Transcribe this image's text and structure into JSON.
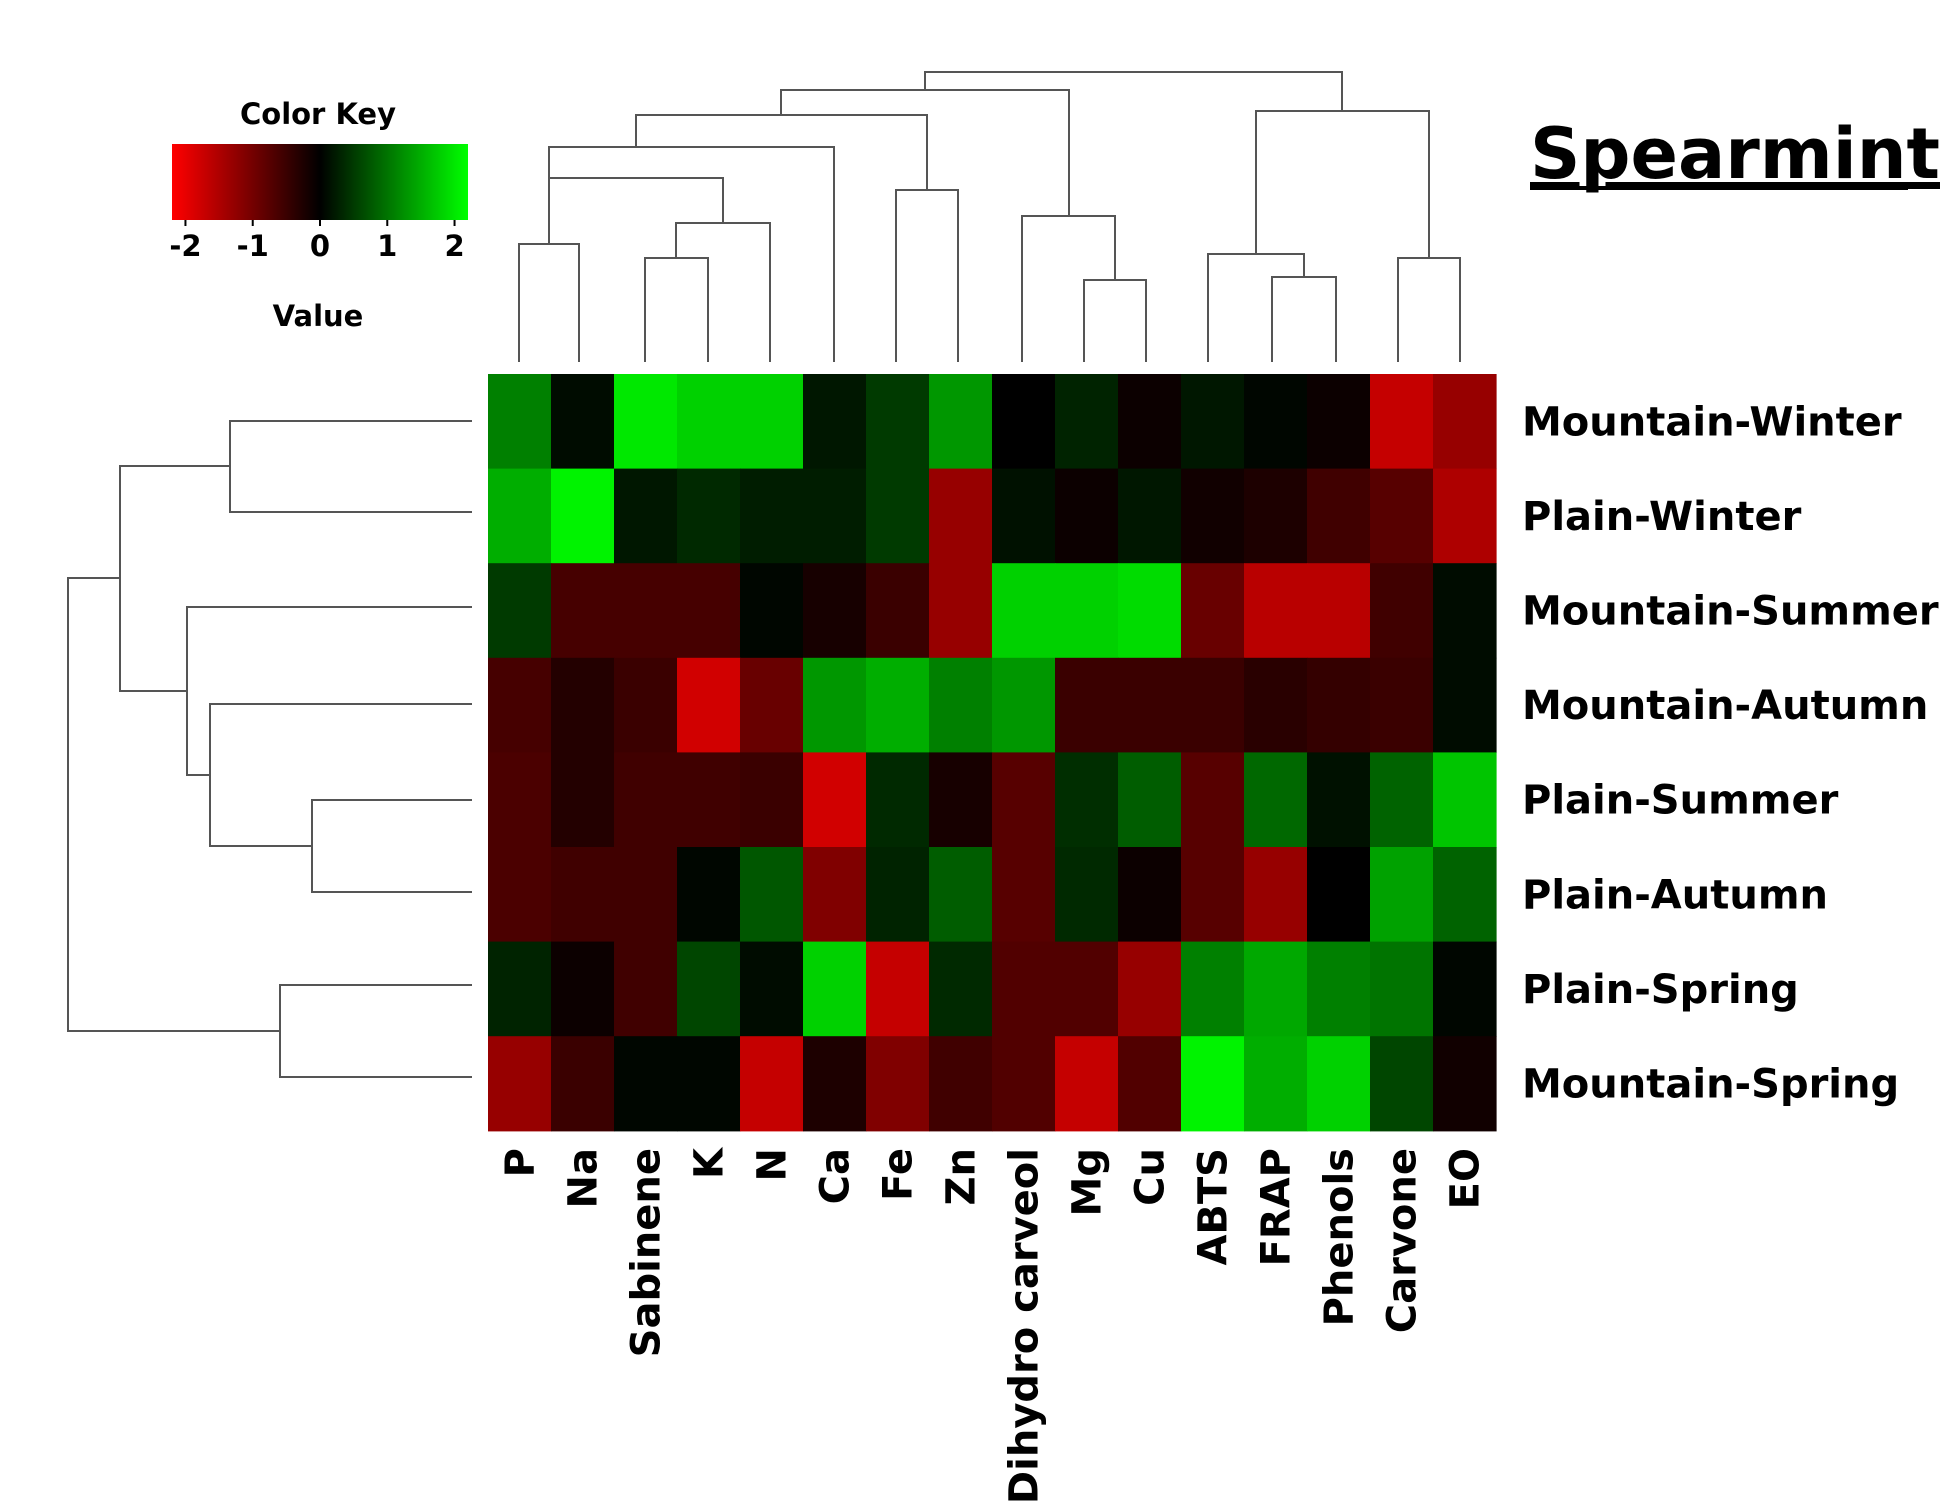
{
  "chart_data": {
    "type": "heatmap",
    "title": "Spearmint",
    "color_key": {
      "title": "Color Key",
      "label": "Value",
      "ticks": [
        "-2",
        "-1",
        "0",
        "1",
        "2"
      ],
      "range": [
        -2.2,
        2.2
      ],
      "low_color": "#ff0000",
      "mid_color": "#000000",
      "high_color": "#00ff00"
    },
    "columns": [
      "P",
      "Na",
      "Sabinene",
      "K",
      "N",
      "Ca",
      "Fe",
      "Zn",
      "Dihydro carveol",
      "Mg",
      "Cu",
      "ABTS",
      "FRAP",
      "Phenols",
      "Carvone",
      "EO"
    ],
    "rows": [
      "Mountain-Winter",
      "Plain-Winter",
      "Mountain-Summer",
      "Mountain-Autumn",
      "Plain-Summer",
      "Plain-Autumn",
      "Plain-Spring",
      "Mountain-Spring"
    ],
    "values": [
      [
        1.1,
        0.1,
        2.0,
        1.8,
        1.8,
        0.2,
        0.5,
        1.3,
        0.0,
        0.3,
        -0.1,
        0.2,
        0.05,
        -0.1,
        -1.7,
        -1.3
      ],
      [
        1.5,
        2.1,
        0.2,
        0.35,
        0.25,
        0.25,
        0.5,
        -1.3,
        0.15,
        -0.1,
        0.2,
        -0.15,
        -0.25,
        -0.55,
        -0.75,
        -1.5
      ],
      [
        0.5,
        -0.6,
        -0.6,
        -0.6,
        0.05,
        -0.2,
        -0.5,
        -1.3,
        1.8,
        1.8,
        1.9,
        -0.9,
        -1.6,
        -1.6,
        -0.55,
        0.1
      ],
      [
        -0.6,
        -0.3,
        -0.5,
        -1.8,
        -0.9,
        1.3,
        1.5,
        1.1,
        1.3,
        -0.5,
        -0.5,
        -0.5,
        -0.35,
        -0.45,
        -0.5,
        0.1
      ],
      [
        -0.65,
        -0.3,
        -0.55,
        -0.55,
        -0.5,
        -1.8,
        0.35,
        -0.2,
        -0.75,
        0.4,
        0.8,
        -0.75,
        0.9,
        0.15,
        0.85,
        1.7
      ],
      [
        -0.65,
        -0.55,
        -0.55,
        0.05,
        0.75,
        -1.1,
        0.3,
        0.8,
        -0.75,
        0.35,
        -0.1,
        -0.75,
        -1.3,
        0.0,
        1.4,
        0.85
      ],
      [
        0.3,
        -0.1,
        -0.55,
        0.6,
        0.1,
        1.8,
        -1.7,
        0.35,
        -0.7,
        -0.7,
        -1.3,
        1.1,
        1.45,
        1.1,
        1.0,
        0.05
      ],
      [
        -1.3,
        -0.5,
        0.05,
        0.05,
        -1.7,
        -0.25,
        -1.1,
        -0.55,
        -0.7,
        -1.7,
        -0.7,
        2.1,
        1.5,
        1.8,
        0.6,
        -0.15
      ]
    ]
  }
}
